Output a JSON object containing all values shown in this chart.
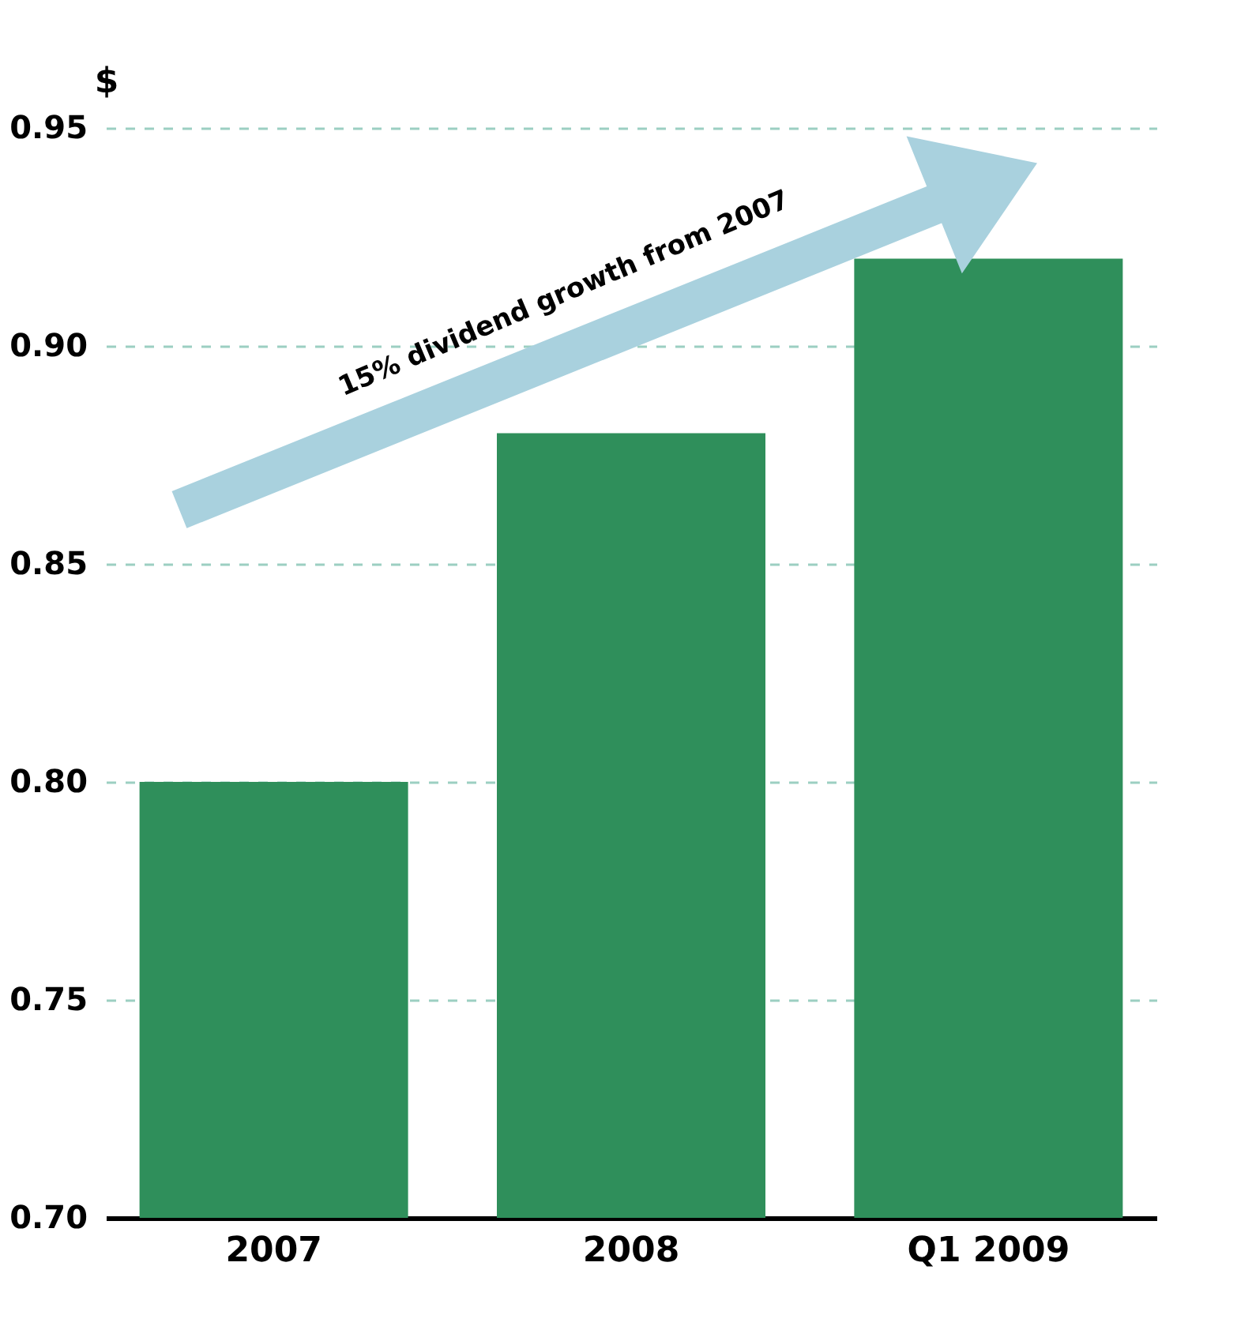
{
  "chart_data": {
    "type": "bar",
    "ylabel": "$",
    "categories": [
      "2007",
      "2008",
      "Q1 2009"
    ],
    "values": [
      0.8,
      0.88,
      0.92
    ],
    "color": "#2f8f5b",
    "ylim": [
      0.7,
      0.95
    ],
    "yticks": [
      {
        "value": 0.7,
        "label": "0.70"
      },
      {
        "value": 0.75,
        "label": "0.75"
      },
      {
        "value": 0.8,
        "label": "0.80"
      },
      {
        "value": 0.85,
        "label": "0.85"
      },
      {
        "value": 0.9,
        "label": "0.90"
      },
      {
        "value": 0.95,
        "label": "0.95"
      }
    ],
    "grid": "y",
    "annotations": [
      "15% dividend growth from 2007"
    ]
  }
}
